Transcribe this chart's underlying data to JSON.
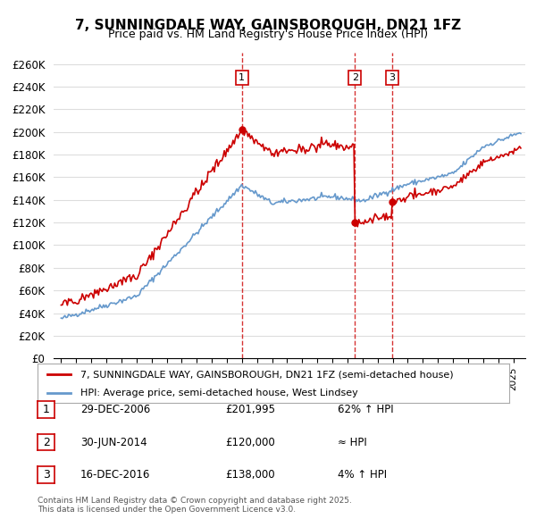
{
  "title": "7, SUNNINGDALE WAY, GAINSBOROUGH, DN21 1FZ",
  "subtitle": "Price paid vs. HM Land Registry's House Price Index (HPI)",
  "ylabel_ticks": [
    "£0",
    "£20K",
    "£40K",
    "£60K",
    "£80K",
    "£100K",
    "£120K",
    "£140K",
    "£160K",
    "£180K",
    "£200K",
    "£220K",
    "£240K",
    "£260K"
  ],
  "ytick_vals": [
    0,
    20000,
    40000,
    60000,
    80000,
    100000,
    120000,
    140000,
    160000,
    180000,
    200000,
    220000,
    240000,
    260000
  ],
  "ylim": [
    0,
    270000
  ],
  "red_color": "#cc0000",
  "blue_color": "#6699cc",
  "vline_color": "#cc0000",
  "background_color": "#ffffff",
  "grid_color": "#dddddd",
  "sale1_date": 2006.99,
  "sale1_price": 201995,
  "sale1_label": "1",
  "sale2_date": 2014.5,
  "sale2_price": 120000,
  "sale2_label": "2",
  "sale3_date": 2016.96,
  "sale3_price": 138000,
  "sale3_label": "3",
  "legend1": "7, SUNNINGDALE WAY, GAINSBOROUGH, DN21 1FZ (semi-detached house)",
  "legend2": "HPI: Average price, semi-detached house, West Lindsey",
  "table": [
    {
      "num": "1",
      "date": "29-DEC-2006",
      "price": "£201,995",
      "change": "62% ↑ HPI"
    },
    {
      "num": "2",
      "date": "30-JUN-2014",
      "price": "£120,000",
      "change": "≈ HPI"
    },
    {
      "num": "3",
      "date": "16-DEC-2016",
      "price": "£138,000",
      "change": "4% ↑ HPI"
    }
  ],
  "footer": "Contains HM Land Registry data © Crown copyright and database right 2025.\nThis data is licensed under the Open Government Licence v3.0."
}
